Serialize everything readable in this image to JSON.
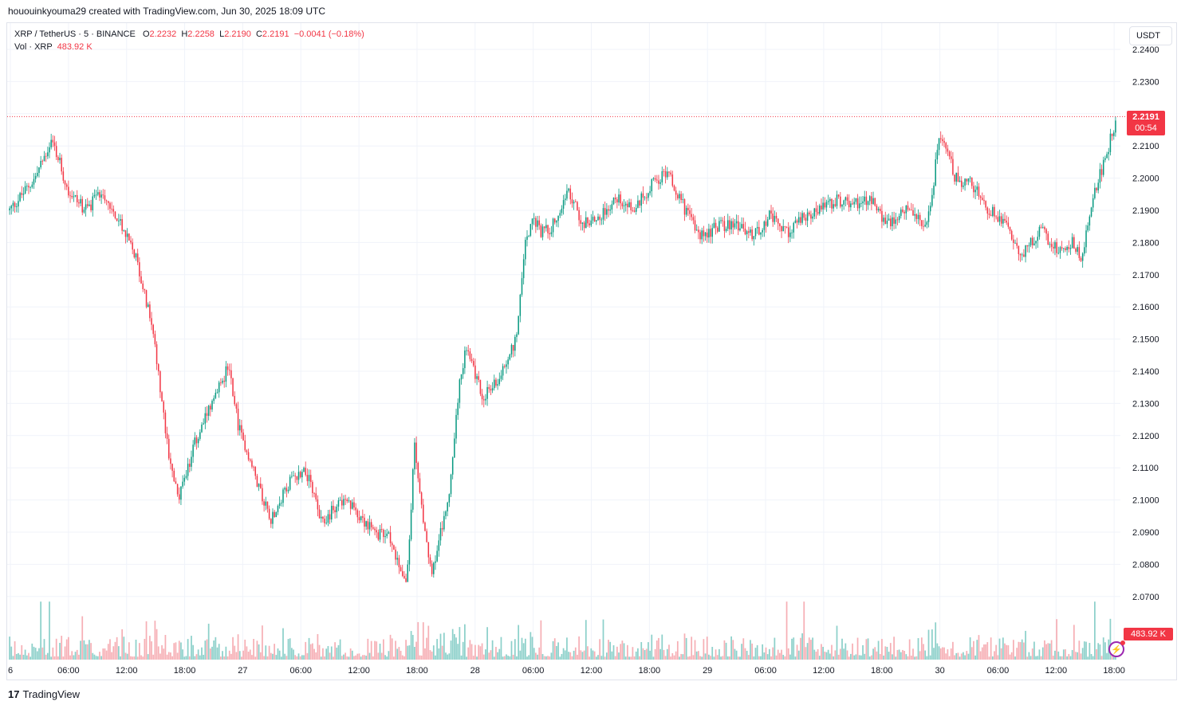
{
  "header": {
    "text": "hououinkyouma29 created with TradingView.com, Jun 30, 2025 18:09 UTC"
  },
  "legend": {
    "symbol": "XRP / TetherUS · 5 · BINANCE",
    "o_label": "O",
    "o_value": "2.2232",
    "h_label": "H",
    "h_value": "2.2258",
    "l_label": "L",
    "l_value": "2.2190",
    "c_label": "C",
    "c_value": "2.2191",
    "change": "−0.0041 (−0.18%)",
    "vol_label": "Vol · XRP",
    "vol_value": "483.92 K"
  },
  "currency_button": "USDT",
  "last_price": {
    "price": "2.2191",
    "countdown": "00:54"
  },
  "volume_tag": "483.92 K",
  "footer": {
    "brand_mark": "17",
    "brand_name": "TradingView"
  },
  "colors": {
    "up": "#089981",
    "down": "#f23645",
    "vol_up": "#80cbc4",
    "vol_down": "#f5a6ad",
    "grid": "#f0f3fa"
  },
  "chart_data": {
    "type": "candlestick",
    "interval": "5m",
    "y_axis_ticks": [
      "2.2400",
      "2.2300",
      "2.2200",
      "2.2100",
      "2.2000",
      "2.1900",
      "2.1800",
      "2.1700",
      "2.1600",
      "2.1500",
      "2.1400",
      "2.1300",
      "2.1200",
      "2.1100",
      "2.1000",
      "2.0900",
      "2.0800",
      "2.0700"
    ],
    "ylim": [
      2.065,
      2.242
    ],
    "x_axis_ticks": [
      "6",
      "06:00",
      "12:00",
      "18:00",
      "27",
      "06:00",
      "12:00",
      "18:00",
      "28",
      "06:00",
      "12:00",
      "18:00",
      "29",
      "06:00",
      "12:00",
      "18:00",
      "30",
      "06:00",
      "12:00",
      "18:00"
    ],
    "last_close": 2.2191,
    "price_path": [
      [
        0,
        2.19
      ],
      [
        3,
        2.2
      ],
      [
        5,
        2.212
      ],
      [
        7,
        2.196
      ],
      [
        9,
        2.19
      ],
      [
        11,
        2.196
      ],
      [
        13,
        2.186
      ],
      [
        15,
        2.175
      ],
      [
        17,
        2.152
      ],
      [
        18,
        2.13
      ],
      [
        19,
        2.112
      ],
      [
        20,
        2.1
      ],
      [
        22,
        2.118
      ],
      [
        24,
        2.13
      ],
      [
        26,
        2.142
      ],
      [
        27,
        2.124
      ],
      [
        29,
        2.108
      ],
      [
        31,
        2.094
      ],
      [
        33,
        2.105
      ],
      [
        35,
        2.11
      ],
      [
        37,
        2.092
      ],
      [
        39,
        2.1
      ],
      [
        41,
        2.097
      ],
      [
        43,
        2.09
      ],
      [
        45,
        2.088
      ],
      [
        47,
        2.074
      ],
      [
        48,
        2.118
      ],
      [
        49,
        2.092
      ],
      [
        50,
        2.078
      ],
      [
        52,
        2.1
      ],
      [
        53,
        2.13
      ],
      [
        54,
        2.148
      ],
      [
        56,
        2.132
      ],
      [
        58,
        2.138
      ],
      [
        60,
        2.15
      ],
      [
        61,
        2.18
      ],
      [
        62,
        2.187
      ],
      [
        63,
        2.183
      ],
      [
        64,
        2.184
      ],
      [
        66,
        2.196
      ],
      [
        68,
        2.186
      ],
      [
        70,
        2.188
      ],
      [
        72,
        2.194
      ],
      [
        74,
        2.19
      ],
      [
        76,
        2.198
      ],
      [
        78,
        2.202
      ],
      [
        80,
        2.19
      ],
      [
        82,
        2.182
      ],
      [
        84,
        2.185
      ],
      [
        86,
        2.186
      ],
      [
        88,
        2.182
      ],
      [
        90,
        2.188
      ],
      [
        92,
        2.183
      ],
      [
        94,
        2.188
      ],
      [
        96,
        2.19
      ],
      [
        98,
        2.193
      ],
      [
        100,
        2.192
      ],
      [
        102,
        2.193
      ],
      [
        104,
        2.186
      ],
      [
        106,
        2.19
      ],
      [
        108,
        2.186
      ],
      [
        109,
        2.188
      ],
      [
        110,
        2.212
      ],
      [
        111,
        2.21
      ],
      [
        112,
        2.2
      ],
      [
        114,
        2.198
      ],
      [
        116,
        2.19
      ],
      [
        118,
        2.187
      ],
      [
        119,
        2.18
      ],
      [
        120,
        2.176
      ],
      [
        122,
        2.184
      ],
      [
        124,
        2.178
      ],
      [
        126,
        2.18
      ],
      [
        127,
        2.174
      ],
      [
        128,
        2.19
      ],
      [
        129,
        2.2
      ],
      [
        130,
        2.208
      ],
      [
        131,
        2.218
      ]
    ],
    "x_span": 131,
    "volume_ylim": [
      0,
      500000
    ]
  }
}
